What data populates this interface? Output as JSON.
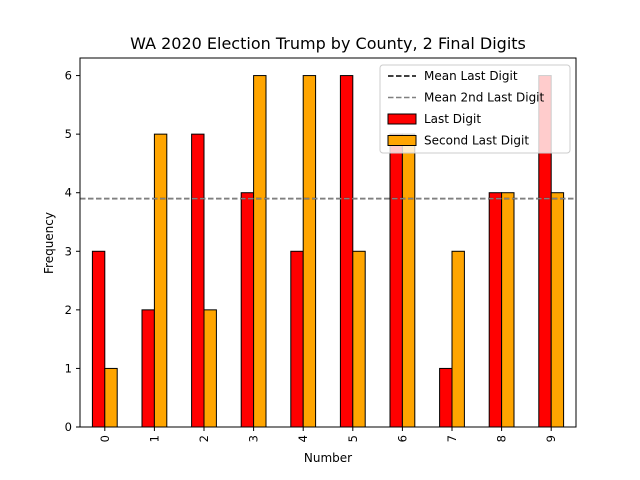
{
  "chart_data": {
    "type": "bar",
    "title": "WA 2020 Election Trump by County, 2 Final Digits",
    "xlabel": "Number",
    "ylabel": "Frequency",
    "categories": [
      "0",
      "1",
      "2",
      "3",
      "4",
      "5",
      "6",
      "7",
      "8",
      "9"
    ],
    "ylim": [
      0,
      6.3
    ],
    "yticks": [
      0,
      1,
      2,
      3,
      4,
      5,
      6
    ],
    "series": [
      {
        "name": "Last Digit",
        "values": [
          3,
          2,
          5,
          4,
          3,
          6,
          5,
          1,
          4,
          6
        ],
        "color": "#ff0000"
      },
      {
        "name": "Second Last Digit",
        "values": [
          1,
          5,
          2,
          6,
          6,
          3,
          5,
          3,
          4,
          4
        ],
        "color": "#ffa500"
      }
    ],
    "reference_lines": [
      {
        "name": "Mean Last Digit",
        "value": 3.9,
        "color": "#000000",
        "style": "dashed"
      },
      {
        "name": "Mean 2nd Last Digit",
        "value": 3.9,
        "color": "#808080",
        "style": "dashed"
      }
    ],
    "legend_placement": "top-right",
    "grid": false
  }
}
